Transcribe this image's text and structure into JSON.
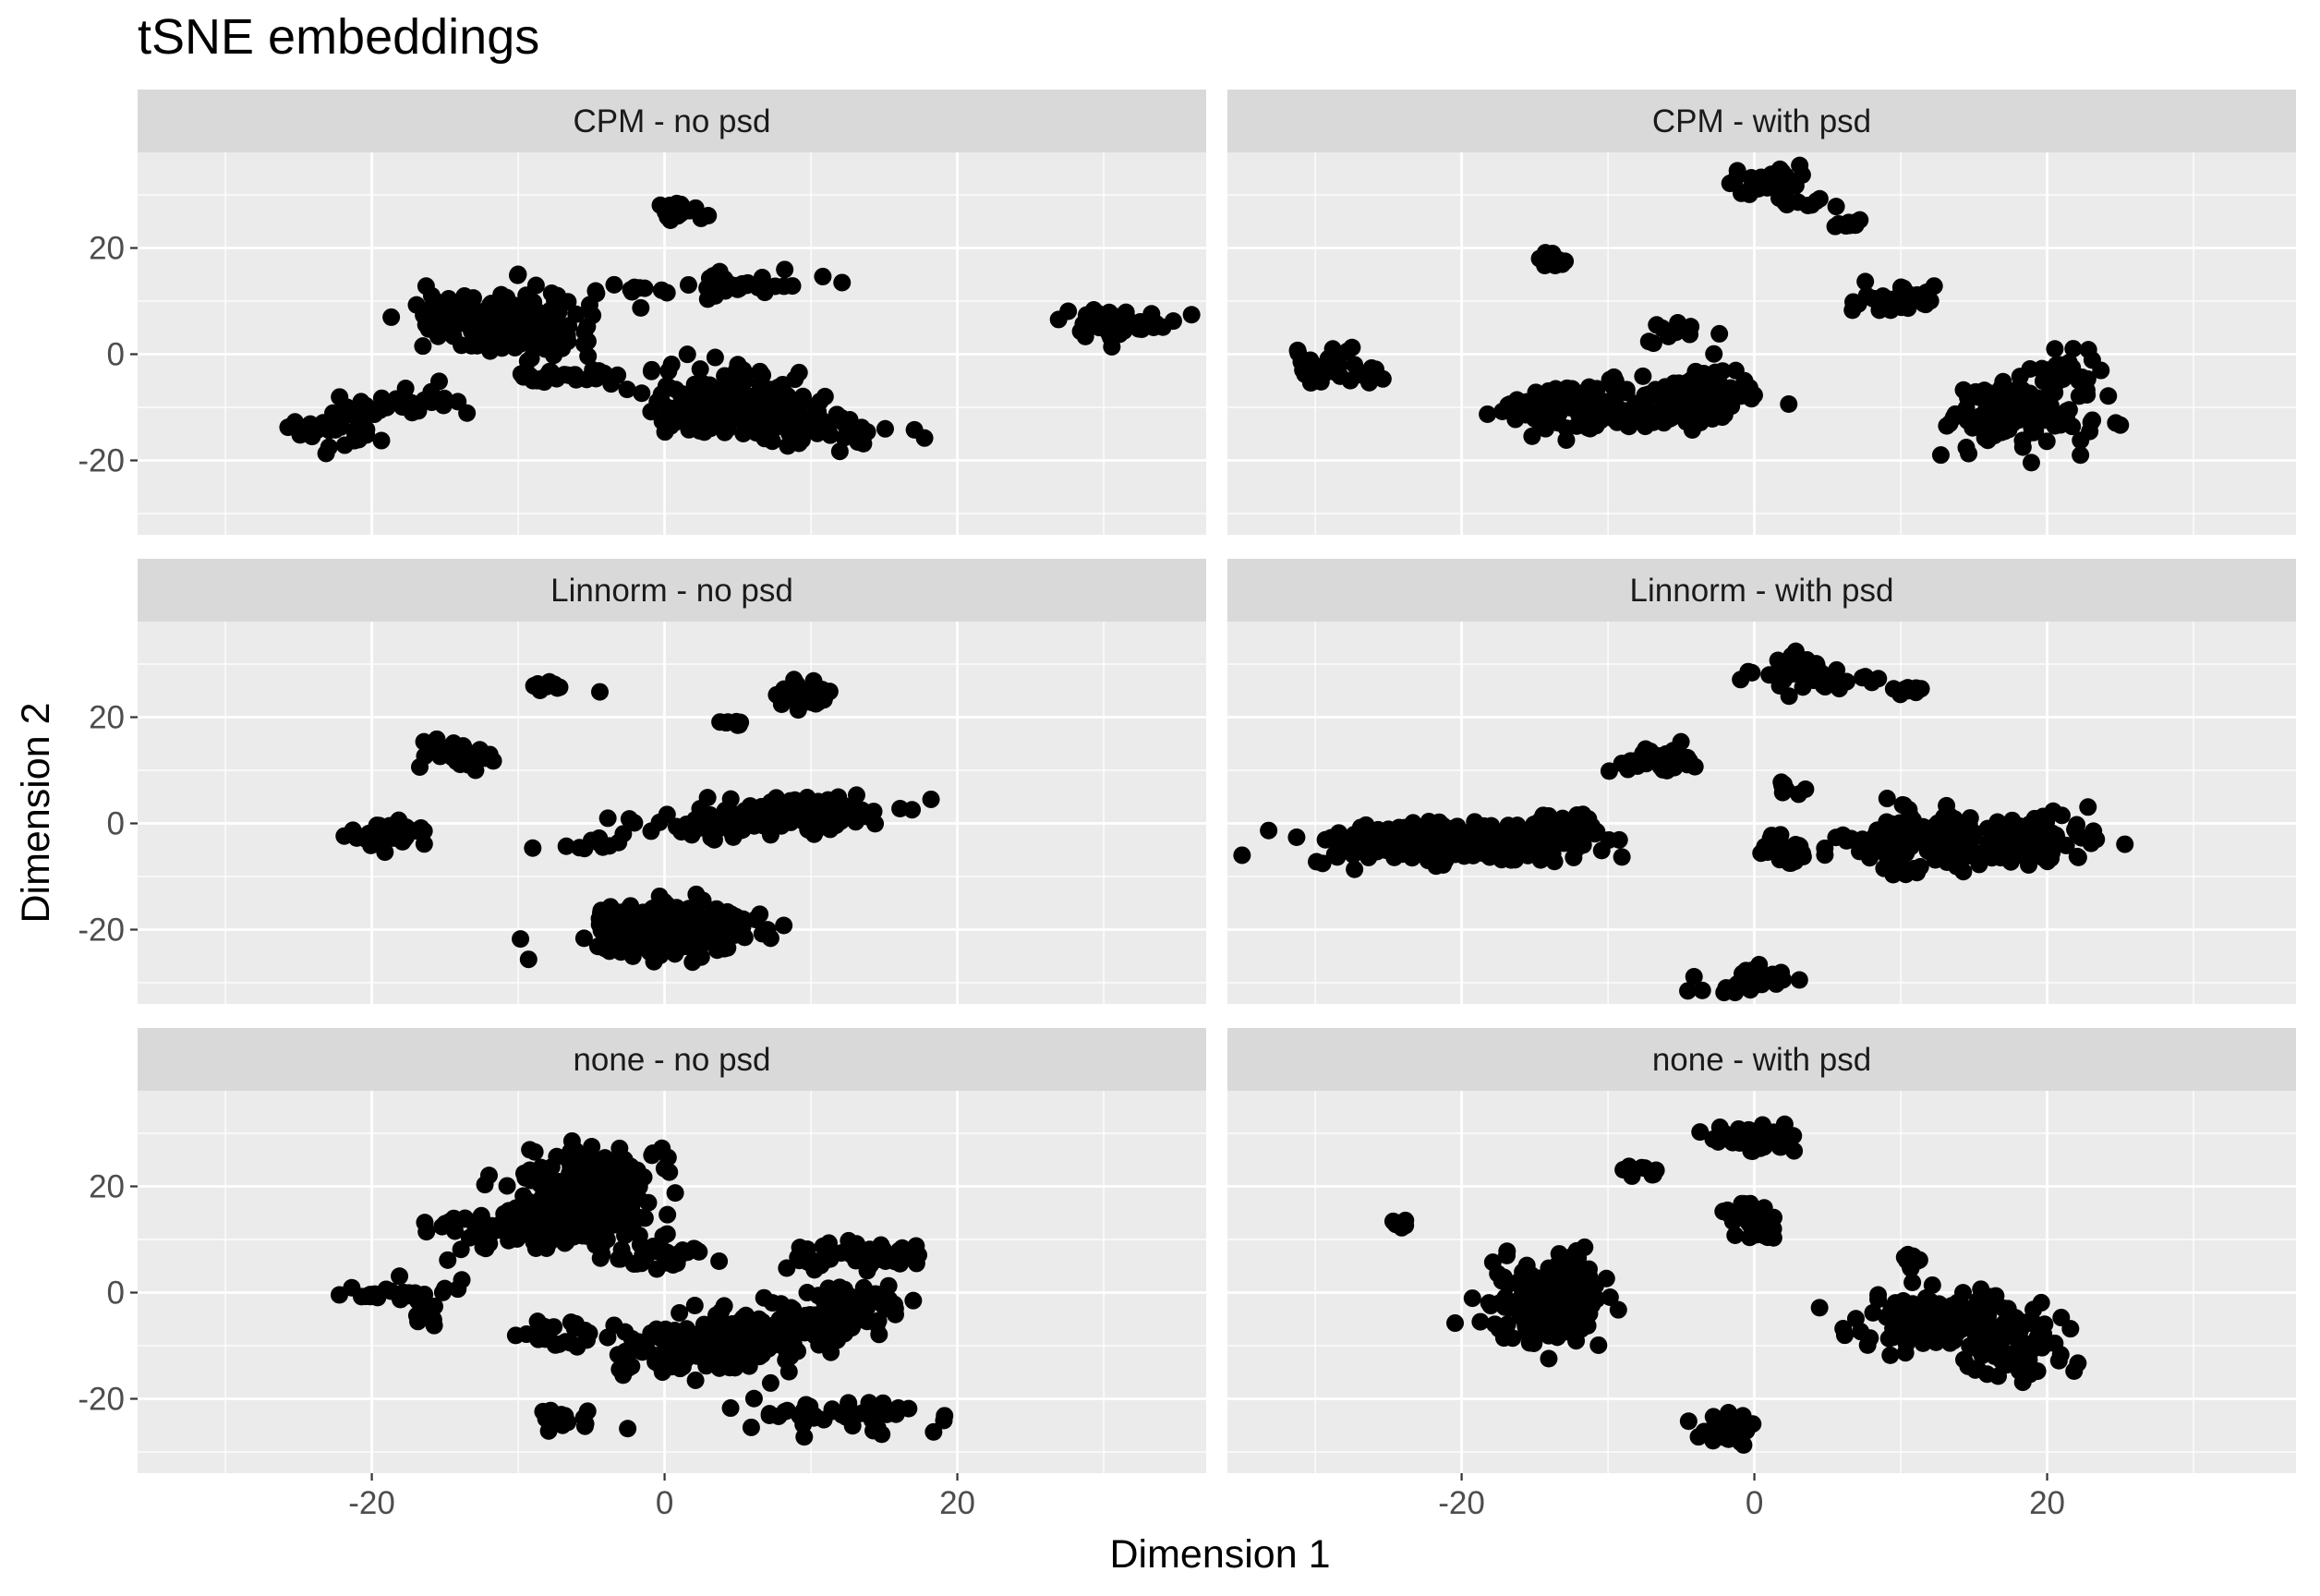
{
  "chart_data": {
    "type": "scatter",
    "title": "tSNE embeddings",
    "xlabel": "Dimension 1",
    "ylabel": "Dimension 2",
    "xlim": [
      -36,
      37
    ],
    "ylim": [
      -34,
      38
    ],
    "x_ticks": [
      -20,
      0,
      20
    ],
    "y_ticks": [
      -20,
      0,
      20
    ],
    "x_minor": [
      -30,
      -10,
      10,
      30
    ],
    "y_minor": [
      -30,
      -10,
      10,
      30
    ],
    "grid": true,
    "facet_layout": "3 rows x 2 columns, shared axes",
    "colors": {
      "panel_background": "#ebebeb",
      "grid": "#ffffff",
      "strip_background": "#d9d9d9",
      "points": "#000000"
    },
    "panels": [
      {
        "label": "CPM - no psd",
        "clusters": [
          {
            "cx": -10,
            "cy": 6,
            "sx": 2.6,
            "sy": 3.5,
            "n": 150
          },
          {
            "cx": -15,
            "cy": 8,
            "sx": 1.3,
            "sy": 2.5,
            "n": 25
          },
          {
            "cx": -7.5,
            "cy": -4,
            "sx": 2.0,
            "sy": 0.8,
            "n": 25
          },
          {
            "cx": -22,
            "cy": -14,
            "sx": 1.5,
            "sy": 2.2,
            "n": 35
          },
          {
            "cx": -19,
            "cy": -10,
            "sx": 1.2,
            "sy": 0.9,
            "n": 14
          },
          {
            "cx": -16,
            "cy": -8,
            "sx": 1.2,
            "sy": 1.8,
            "n": 12
          },
          {
            "cx": 1,
            "cy": 27,
            "sx": 0.9,
            "sy": 0.9,
            "n": 20
          },
          {
            "cx": 5,
            "cy": 13,
            "sx": 2.8,
            "sy": 1.5,
            "n": 35
          },
          {
            "cx": -1.5,
            "cy": 12,
            "sx": 0.8,
            "sy": 1.4,
            "n": 4
          },
          {
            "cx": 5,
            "cy": -9,
            "sx": 3.2,
            "sy": 3.2,
            "n": 180
          },
          {
            "cx": 11,
            "cy": -14,
            "sx": 2.3,
            "sy": 2.0,
            "n": 45
          },
          {
            "cx": 31,
            "cy": 6,
            "sx": 2.2,
            "sy": 1.4,
            "n": 45
          }
        ]
      },
      {
        "label": "CPM - with psd",
        "clusters": [
          {
            "cx": -29,
            "cy": -2,
            "sx": 1.7,
            "sy": 1.7,
            "n": 30
          },
          {
            "cx": -14,
            "cy": 18,
            "sx": 0.5,
            "sy": 0.7,
            "n": 15
          },
          {
            "cx": 1,
            "cy": 32,
            "sx": 1.5,
            "sy": 1.4,
            "n": 30
          },
          {
            "cx": 3.5,
            "cy": 29,
            "sx": 0.9,
            "sy": 1.0,
            "n": 8
          },
          {
            "cx": 6.5,
            "cy": 24.5,
            "sx": 0.6,
            "sy": 0.5,
            "n": 10
          },
          {
            "cx": -9,
            "cy": -10,
            "sx": 4.0,
            "sy": 2.2,
            "n": 170
          },
          {
            "cx": -3.5,
            "cy": -7,
            "sx": 2.0,
            "sy": 2.5,
            "n": 60
          },
          {
            "cx": -5,
            "cy": 4,
            "sx": 1.0,
            "sy": 1.2,
            "n": 12
          },
          {
            "cx": 9.5,
            "cy": 10,
            "sx": 1.5,
            "sy": 1.5,
            "n": 35
          },
          {
            "cx": 18,
            "cy": -11,
            "sx": 2.4,
            "sy": 3.5,
            "n": 110
          },
          {
            "cx": 21.5,
            "cy": -3,
            "sx": 1.2,
            "sy": 1.8,
            "n": 25
          }
        ]
      },
      {
        "label": "Linnorm - no psd",
        "clusters": [
          {
            "cx": -19,
            "cy": -2,
            "sx": 1.3,
            "sy": 1.5,
            "n": 45
          },
          {
            "cx": -14,
            "cy": 13,
            "sx": 1.1,
            "sy": 1.4,
            "n": 35
          },
          {
            "cx": -8,
            "cy": 26,
            "sx": 0.6,
            "sy": 0.4,
            "n": 12
          },
          {
            "cx": -4,
            "cy": 25,
            "sx": 0.3,
            "sy": 0.3,
            "n": 1
          },
          {
            "cx": -6,
            "cy": -4,
            "sx": 1.5,
            "sy": 0.5,
            "n": 10
          },
          {
            "cx": 0.5,
            "cy": -20,
            "sx": 2.5,
            "sy": 2.0,
            "n": 350
          },
          {
            "cx": 4,
            "cy": 0,
            "sx": 3.0,
            "sy": 1.5,
            "n": 55
          },
          {
            "cx": 10,
            "cy": 2,
            "sx": 2.6,
            "sy": 1.8,
            "n": 100
          },
          {
            "cx": 9.5,
            "cy": 24,
            "sx": 1.1,
            "sy": 1.2,
            "n": 35
          },
          {
            "cx": 4.5,
            "cy": 19,
            "sx": 0.7,
            "sy": 0.6,
            "n": 8
          }
        ]
      },
      {
        "label": "Linnorm - with psd",
        "clusters": [
          {
            "cx": -21,
            "cy": -4,
            "sx": 4.5,
            "sy": 2.0,
            "n": 250
          },
          {
            "cx": -13,
            "cy": -1,
            "sx": 2.0,
            "sy": 1.5,
            "n": 40
          },
          {
            "cx": -6.5,
            "cy": 12,
            "sx": 1.5,
            "sy": 1.3,
            "n": 40
          },
          {
            "cx": 3,
            "cy": 28.5,
            "sx": 1.3,
            "sy": 1.4,
            "n": 40
          },
          {
            "cx": 6.5,
            "cy": 27,
            "sx": 1.2,
            "sy": 0.3,
            "n": 8
          },
          {
            "cx": 10.5,
            "cy": 25,
            "sx": 0.5,
            "sy": 0.8,
            "n": 10
          },
          {
            "cx": 3,
            "cy": 7,
            "sx": 1.2,
            "sy": 0.8,
            "n": 8
          },
          {
            "cx": 2,
            "cy": -5,
            "sx": 1.2,
            "sy": 1.5,
            "n": 25
          },
          {
            "cx": -0.5,
            "cy": -30,
            "sx": 1.6,
            "sy": 1.2,
            "n": 40
          },
          {
            "cx": 13,
            "cy": -3,
            "sx": 3.0,
            "sy": 3.0,
            "n": 120
          },
          {
            "cx": 19,
            "cy": -3,
            "sx": 2.0,
            "sy": 2.2,
            "n": 80
          },
          {
            "cx": 9,
            "cy": -5,
            "sx": 1.2,
            "sy": 2.5,
            "n": 20
          }
        ]
      },
      {
        "label": "none - no psd",
        "clusters": [
          {
            "cx": -5,
            "cy": 20,
            "sx": 2.2,
            "sy": 3.5,
            "n": 220
          },
          {
            "cx": -9,
            "cy": 12,
            "sx": 3.5,
            "sy": 2.0,
            "n": 120
          },
          {
            "cx": -1,
            "cy": 7,
            "sx": 2.5,
            "sy": 1.0,
            "n": 30
          },
          {
            "cx": -18,
            "cy": 0,
            "sx": 1.8,
            "sy": 1.2,
            "n": 25
          },
          {
            "cx": -16,
            "cy": -3,
            "sx": 0.8,
            "sy": 2.0,
            "n": 10
          },
          {
            "cx": -7,
            "cy": -8,
            "sx": 1.5,
            "sy": 1.5,
            "n": 20
          },
          {
            "cx": -7,
            "cy": -24,
            "sx": 1.2,
            "sy": 1.2,
            "n": 20
          },
          {
            "cx": 3,
            "cy": -10,
            "sx": 3.0,
            "sy": 3.0,
            "n": 160
          },
          {
            "cx": 9,
            "cy": -6,
            "sx": 2.5,
            "sy": 2.5,
            "n": 60
          },
          {
            "cx": 13,
            "cy": -2,
            "sx": 2.0,
            "sy": 2.0,
            "n": 40
          },
          {
            "cx": 13,
            "cy": 7,
            "sx": 2.5,
            "sy": 1.2,
            "n": 50
          },
          {
            "cx": 12,
            "cy": -23,
            "sx": 3.0,
            "sy": 1.5,
            "n": 45
          }
        ]
      },
      {
        "label": "none - with psd",
        "clusters": [
          {
            "cx": -24,
            "cy": 13,
            "sx": 0.5,
            "sy": 0.4,
            "n": 12
          },
          {
            "cx": -14,
            "cy": -2,
            "sx": 2.2,
            "sy": 4.0,
            "n": 150
          },
          {
            "cx": -8,
            "cy": 23,
            "sx": 0.8,
            "sy": 0.5,
            "n": 12
          },
          {
            "cx": 0.5,
            "cy": 29,
            "sx": 1.5,
            "sy": 1.5,
            "n": 40
          },
          {
            "cx": 0,
            "cy": 14,
            "sx": 1.0,
            "sy": 1.5,
            "n": 40
          },
          {
            "cx": -2,
            "cy": -26,
            "sx": 1.0,
            "sy": 1.3,
            "n": 30
          },
          {
            "cx": 11,
            "cy": 6.5,
            "sx": 0.4,
            "sy": 1.2,
            "n": 8
          },
          {
            "cx": 13,
            "cy": -5,
            "sx": 3.0,
            "sy": 2.5,
            "n": 170
          },
          {
            "cx": 18,
            "cy": -11,
            "sx": 1.6,
            "sy": 2.5,
            "n": 50
          }
        ]
      }
    ]
  }
}
